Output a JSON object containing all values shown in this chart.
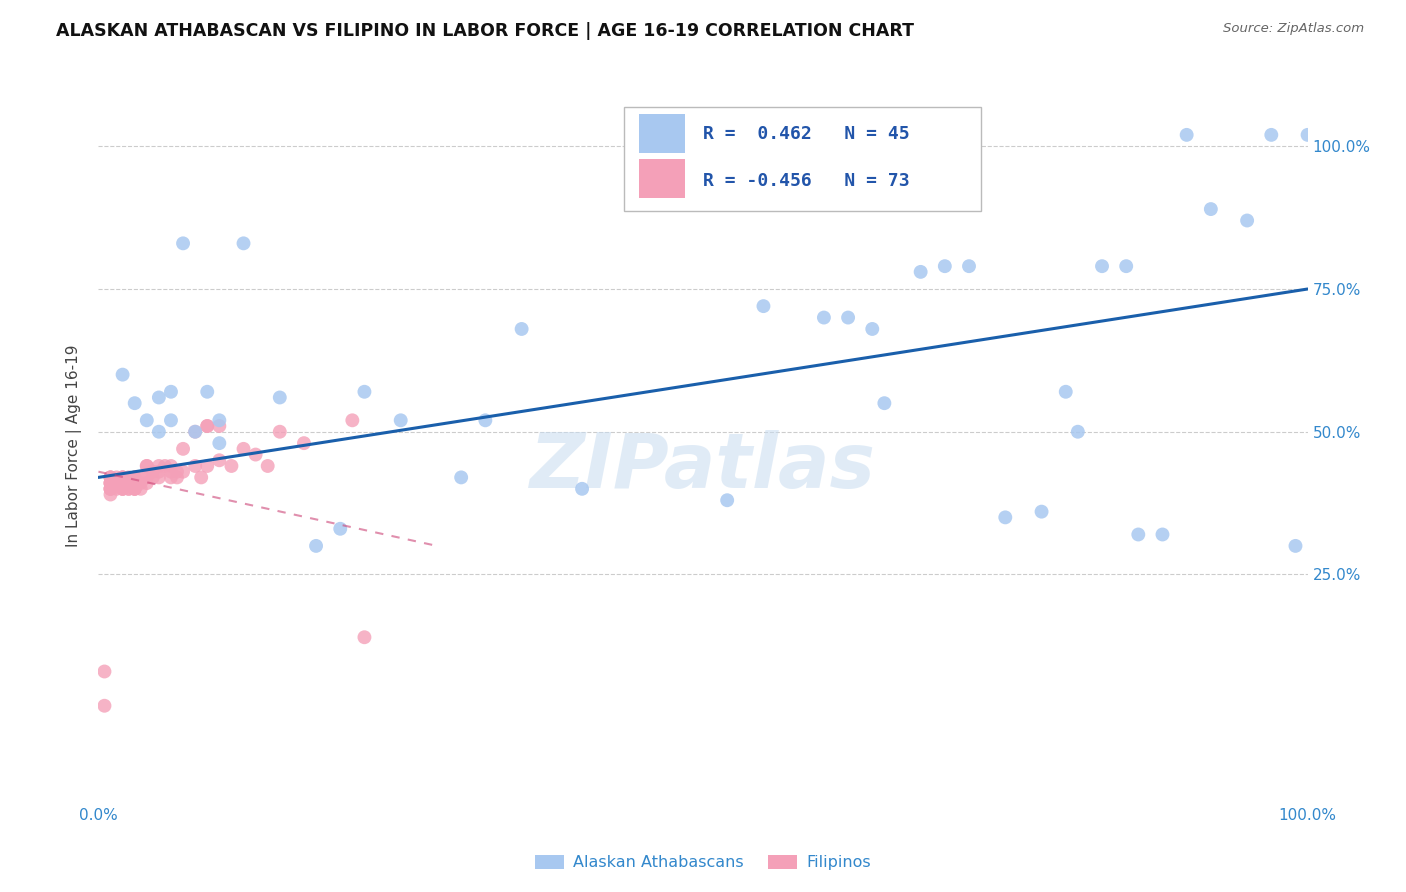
{
  "title": "ALASKAN ATHABASCAN VS FILIPINO IN LABOR FORCE | AGE 16-19 CORRELATION CHART",
  "source": "Source: ZipAtlas.com",
  "ylabel": "In Labor Force | Age 16-19",
  "xlim": [
    0.0,
    1.0
  ],
  "ylim": [
    -0.15,
    1.1
  ],
  "xticks": [
    0.0,
    1.0
  ],
  "xticklabels": [
    "0.0%",
    "100.0%"
  ],
  "yticks_right": [
    0.25,
    0.5,
    0.75,
    1.0
  ],
  "yticklabels_right": [
    "25.0%",
    "50.0%",
    "75.0%",
    "100.0%"
  ],
  "legend_blue_r": "0.462",
  "legend_blue_n": "45",
  "legend_pink_r": "-0.456",
  "legend_pink_n": "73",
  "blue_color": "#A8C8F0",
  "pink_color": "#F4A0B8",
  "trendline_blue_color": "#1A5FAB",
  "trendline_pink_color": "#CC4477",
  "trendline_pink_dash": [
    4,
    4
  ],
  "watermark": "ZIPatlas",
  "blue_scatter_x": [
    0.02,
    0.03,
    0.04,
    0.05,
    0.05,
    0.06,
    0.06,
    0.07,
    0.08,
    0.09,
    0.1,
    0.1,
    0.12,
    0.15,
    0.18,
    0.2,
    0.22,
    0.25,
    0.3,
    0.32,
    0.35,
    0.4,
    0.52,
    0.55,
    0.6,
    0.62,
    0.64,
    0.65,
    0.68,
    0.7,
    0.72,
    0.75,
    0.78,
    0.8,
    0.81,
    0.83,
    0.85,
    0.86,
    0.88,
    0.9,
    0.92,
    0.95,
    0.97,
    0.99,
    1.0
  ],
  "blue_scatter_y": [
    0.6,
    0.55,
    0.52,
    0.5,
    0.56,
    0.52,
    0.57,
    0.83,
    0.5,
    0.57,
    0.48,
    0.52,
    0.83,
    0.56,
    0.3,
    0.33,
    0.57,
    0.52,
    0.42,
    0.52,
    0.68,
    0.4,
    0.38,
    0.72,
    0.7,
    0.7,
    0.68,
    0.55,
    0.78,
    0.79,
    0.79,
    0.35,
    0.36,
    0.57,
    0.5,
    0.79,
    0.79,
    0.32,
    0.32,
    1.02,
    0.89,
    0.87,
    1.02,
    0.3,
    1.02
  ],
  "pink_scatter_x": [
    0.005,
    0.005,
    0.01,
    0.01,
    0.01,
    0.01,
    0.01,
    0.01,
    0.01,
    0.01,
    0.01,
    0.01,
    0.015,
    0.015,
    0.015,
    0.02,
    0.02,
    0.02,
    0.02,
    0.02,
    0.02,
    0.02,
    0.02,
    0.02,
    0.025,
    0.025,
    0.025,
    0.025,
    0.03,
    0.03,
    0.03,
    0.03,
    0.03,
    0.03,
    0.03,
    0.03,
    0.03,
    0.035,
    0.035,
    0.035,
    0.04,
    0.04,
    0.04,
    0.04,
    0.045,
    0.045,
    0.05,
    0.05,
    0.05,
    0.055,
    0.06,
    0.06,
    0.06,
    0.065,
    0.065,
    0.07,
    0.07,
    0.08,
    0.08,
    0.085,
    0.09,
    0.09,
    0.09,
    0.1,
    0.1,
    0.11,
    0.12,
    0.13,
    0.14,
    0.15,
    0.17,
    0.21,
    0.22
  ],
  "pink_scatter_y": [
    0.08,
    0.02,
    0.39,
    0.4,
    0.41,
    0.42,
    0.4,
    0.41,
    0.42,
    0.4,
    0.41,
    0.42,
    0.4,
    0.41,
    0.42,
    0.4,
    0.41,
    0.42,
    0.4,
    0.41,
    0.42,
    0.4,
    0.41,
    0.42,
    0.4,
    0.41,
    0.42,
    0.4,
    0.42,
    0.41,
    0.4,
    0.42,
    0.41,
    0.4,
    0.42,
    0.41,
    0.4,
    0.42,
    0.41,
    0.4,
    0.44,
    0.42,
    0.41,
    0.44,
    0.43,
    0.42,
    0.44,
    0.43,
    0.42,
    0.44,
    0.44,
    0.43,
    0.42,
    0.43,
    0.42,
    0.43,
    0.47,
    0.44,
    0.5,
    0.42,
    0.51,
    0.44,
    0.51,
    0.45,
    0.51,
    0.44,
    0.47,
    0.46,
    0.44,
    0.5,
    0.48,
    0.52,
    0.14
  ],
  "blue_trendline_x": [
    0.0,
    1.0
  ],
  "blue_trendline_y": [
    0.42,
    0.75
  ],
  "pink_trendline_x": [
    0.0,
    0.28
  ],
  "pink_trendline_y": [
    0.43,
    0.3
  ],
  "background_color": "#FFFFFF",
  "grid_color": "#CCCCCC"
}
